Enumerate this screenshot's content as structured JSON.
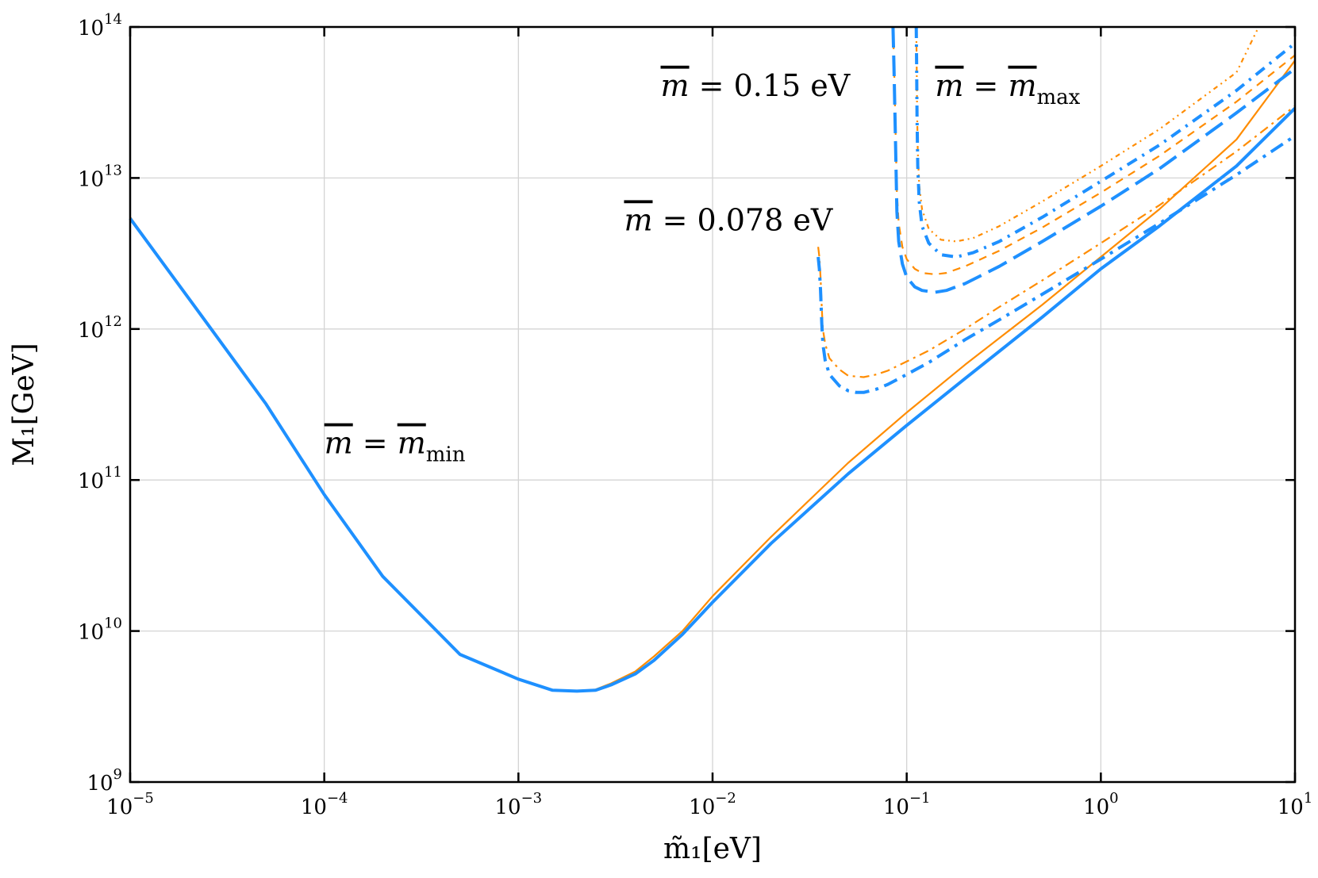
{
  "chart_data": {
    "type": "line",
    "xscale": "log",
    "yscale": "log",
    "xlim": [
      1e-05,
      10
    ],
    "ylim": [
      1000000000.0,
      100000000000000.0
    ],
    "grid": true,
    "xlabel": "m̃₁[eV]",
    "ylabel": "M₁[GeV]",
    "xticks": [
      {
        "base": "10",
        "exp": "−5",
        "value": 1e-05
      },
      {
        "base": "10",
        "exp": "−4",
        "value": 0.0001
      },
      {
        "base": "10",
        "exp": "−3",
        "value": 0.001
      },
      {
        "base": "10",
        "exp": "−2",
        "value": 0.01
      },
      {
        "base": "10",
        "exp": "−1",
        "value": 0.1
      },
      {
        "base": "10",
        "exp": "0",
        "value": 1
      },
      {
        "base": "10",
        "exp": "1",
        "value": 10
      }
    ],
    "yticks": [
      {
        "base": "10",
        "exp": "9",
        "value": 1000000000.0
      },
      {
        "base": "10",
        "exp": "10",
        "value": 10000000000.0
      },
      {
        "base": "10",
        "exp": "11",
        "value": 100000000000.0
      },
      {
        "base": "10",
        "exp": "12",
        "value": 1000000000000.0
      },
      {
        "base": "10",
        "exp": "13",
        "value": 10000000000000.0
      },
      {
        "base": "10",
        "exp": "14",
        "value": 100000000000000.0
      }
    ],
    "annotations": [
      {
        "id": "mmin",
        "lhs": "m",
        "eq": " = ",
        "rhs": "m",
        "sub": "min",
        "x": 0.0001,
        "y": 150000000000.0
      },
      {
        "id": "m078",
        "lhs": "m",
        "eq": " = ",
        "rhs": "0.078 eV",
        "sub": "",
        "x": 0.0035,
        "y": 4500000000000.0
      },
      {
        "id": "m015",
        "lhs": "m",
        "eq": " = ",
        "rhs": "0.15 eV",
        "sub": "",
        "x": 0.0054,
        "y": 35000000000000.0
      },
      {
        "id": "mmax",
        "lhs": "m",
        "eq": " = ",
        "rhs": "m",
        "sub": "max",
        "x": 0.14,
        "y": 35000000000000.0
      }
    ],
    "series": [
      {
        "name": "m = m_min (orange)",
        "color": "#ff8c00",
        "dash": "solid",
        "width": 2.2,
        "x": [
          1e-05,
          2e-05,
          5e-05,
          0.0001,
          0.0002,
          0.0005,
          0.001,
          0.0015,
          0.002,
          0.0025,
          0.003,
          0.004,
          0.005,
          0.007,
          0.01,
          0.02,
          0.05,
          0.1,
          0.2,
          0.5,
          1,
          2,
          5,
          10
        ],
        "y": [
          5500000000000.0,
          1600000000000.0,
          320000000000.0,
          80000000000.0,
          23000000000.0,
          7000000000.0,
          4800000000.0,
          4050000000.0,
          4000000000.0,
          4100000000.0,
          4500000000.0,
          5400000000.0,
          6800000000.0,
          10000000000.0,
          17000000000.0,
          42000000000.0,
          130000000000.0,
          280000000000.0,
          580000000000.0,
          1450000000000.0,
          3000000000000.0,
          6200000000000.0,
          18000000000000.0,
          60000000000000.0
        ]
      },
      {
        "name": "m = m_min (blue)",
        "color": "#1e90ff",
        "dash": "solid",
        "width": 4,
        "x": [
          1e-05,
          2e-05,
          5e-05,
          0.0001,
          0.0002,
          0.0005,
          0.001,
          0.0015,
          0.002,
          0.0025,
          0.003,
          0.004,
          0.005,
          0.007,
          0.01,
          0.02,
          0.05,
          0.1,
          0.2,
          0.5,
          1,
          2,
          5,
          10
        ],
        "y": [
          5400000000000.0,
          1600000000000.0,
          320000000000.0,
          80000000000.0,
          23000000000.0,
          7000000000.0,
          4800000000.0,
          4050000000.0,
          4000000000.0,
          4050000000.0,
          4400000000.0,
          5200000000.0,
          6400000000.0,
          9500000000.0,
          15500000000.0,
          38000000000.0,
          110000000000.0,
          230000000000.0,
          470000000000.0,
          1200000000000.0,
          2500000000000.0,
          4800000000000.0,
          12000000000000.0,
          29000000000000.0
        ]
      },
      {
        "name": "m = 0.078 eV (orange)",
        "color": "#ff8c00",
        "dash": "12,6,3,6",
        "width": 2.2,
        "x": [
          0.035,
          0.0355,
          0.036,
          0.0365,
          0.037,
          0.038,
          0.04,
          0.045,
          0.05,
          0.06,
          0.07,
          0.08,
          0.1,
          0.13,
          0.2,
          0.3,
          0.5,
          1,
          2,
          5,
          10
        ],
        "y": [
          3500000000000.0,
          3000000000000.0,
          2200000000000.0,
          1400000000000.0,
          1000000000000.0,
          800000000000.0,
          640000000000.0,
          540000000000.0,
          490000000000.0,
          480000000000.0,
          500000000000.0,
          530000000000.0,
          610000000000.0,
          720000000000.0,
          1000000000000.0,
          1400000000000.0,
          2100000000000.0,
          3700000000000.0,
          6600000000000.0,
          15000000000000.0,
          30000000000000.0
        ]
      },
      {
        "name": "m = 0.078 eV (blue)",
        "color": "#1e90ff",
        "dash": "18,8,4,8",
        "width": 4,
        "x": [
          0.035,
          0.0355,
          0.036,
          0.0365,
          0.037,
          0.038,
          0.04,
          0.045,
          0.05,
          0.055,
          0.06,
          0.07,
          0.08,
          0.1,
          0.13,
          0.2,
          0.3,
          0.5,
          1,
          2,
          5,
          10
        ],
        "y": [
          3000000000000.0,
          2500000000000.0,
          1800000000000.0,
          1100000000000.0,
          800000000000.0,
          620000000000.0,
          500000000000.0,
          420000000000.0,
          390000000000.0,
          380000000000.0,
          380000000000.0,
          400000000000.0,
          430000000000.0,
          500000000000.0,
          600000000000.0,
          850000000000.0,
          1150000000000.0,
          1700000000000.0,
          2900000000000.0,
          5000000000000.0,
          10500000000000.0,
          19000000000000.0
        ]
      },
      {
        "name": "m = 0.15 eV (orange)",
        "color": "#ff8c00",
        "dash": "10,8",
        "width": 2.2,
        "x": [
          0.085,
          0.086,
          0.0875,
          0.089,
          0.091,
          0.095,
          0.1,
          0.11,
          0.12,
          0.14,
          0.16,
          0.2,
          0.3,
          0.5,
          1,
          2,
          5,
          10
        ],
        "y": [
          100000000000000.0,
          60000000000000.0,
          22000000000000.0,
          8000000000000.0,
          5000000000000.0,
          3500000000000.0,
          2900000000000.0,
          2500000000000.0,
          2350000000000.0,
          2300000000000.0,
          2350000000000.0,
          2600000000000.0,
          3300000000000.0,
          4700000000000.0,
          8000000000000.0,
          14000000000000.0,
          32000000000000.0,
          65000000000000.0
        ]
      },
      {
        "name": "m = 0.15 eV (blue)",
        "color": "#1e90ff",
        "dash": "26,10",
        "width": 4,
        "x": [
          0.085,
          0.086,
          0.0875,
          0.089,
          0.091,
          0.095,
          0.1,
          0.11,
          0.12,
          0.14,
          0.16,
          0.2,
          0.3,
          0.5,
          1,
          2,
          5,
          10
        ],
        "y": [
          100000000000000.0,
          55000000000000.0,
          18000000000000.0,
          6000000000000.0,
          3800000000000.0,
          2700000000000.0,
          2200000000000.0,
          1900000000000.0,
          1800000000000.0,
          1750000000000.0,
          1800000000000.0,
          2000000000000.0,
          2600000000000.0,
          3800000000000.0,
          6500000000000.0,
          11500000000000.0,
          27000000000000.0,
          53000000000000.0
        ]
      },
      {
        "name": "m = m_max (orange)",
        "color": "#ff8c00",
        "dash": "6,5,2,5,2,5",
        "width": 2.2,
        "x": [
          0.112,
          0.1125,
          0.113,
          0.114,
          0.116,
          0.12,
          0.13,
          0.15,
          0.18,
          0.22,
          0.3,
          0.5,
          1,
          2,
          5,
          6.5
        ],
        "y": [
          100000000000000.0,
          60000000000000.0,
          30000000000000.0,
          15000000000000.0,
          9000000000000.0,
          6200000000000.0,
          4600000000000.0,
          3900000000000.0,
          3800000000000.0,
          4000000000000.0,
          4800000000000.0,
          7000000000000.0,
          12000000000000.0,
          21000000000000.0,
          50000000000000.0,
          100000000000000.0
        ]
      },
      {
        "name": "m = m_max (blue)",
        "color": "#1e90ff",
        "dash": "14,8,3,8",
        "width": 4,
        "x": [
          0.112,
          0.1125,
          0.113,
          0.114,
          0.116,
          0.12,
          0.13,
          0.15,
          0.18,
          0.22,
          0.3,
          0.5,
          1,
          2,
          5,
          10
        ],
        "y": [
          100000000000000.0,
          55000000000000.0,
          25000000000000.0,
          12000000000000.0,
          7000000000000.0,
          4800000000000.0,
          3700000000000.0,
          3100000000000.0,
          3000000000000.0,
          3200000000000.0,
          3800000000000.0,
          5500000000000.0,
          9500000000000.0,
          16500000000000.0,
          38000000000000.0,
          78000000000000.0
        ]
      }
    ]
  }
}
